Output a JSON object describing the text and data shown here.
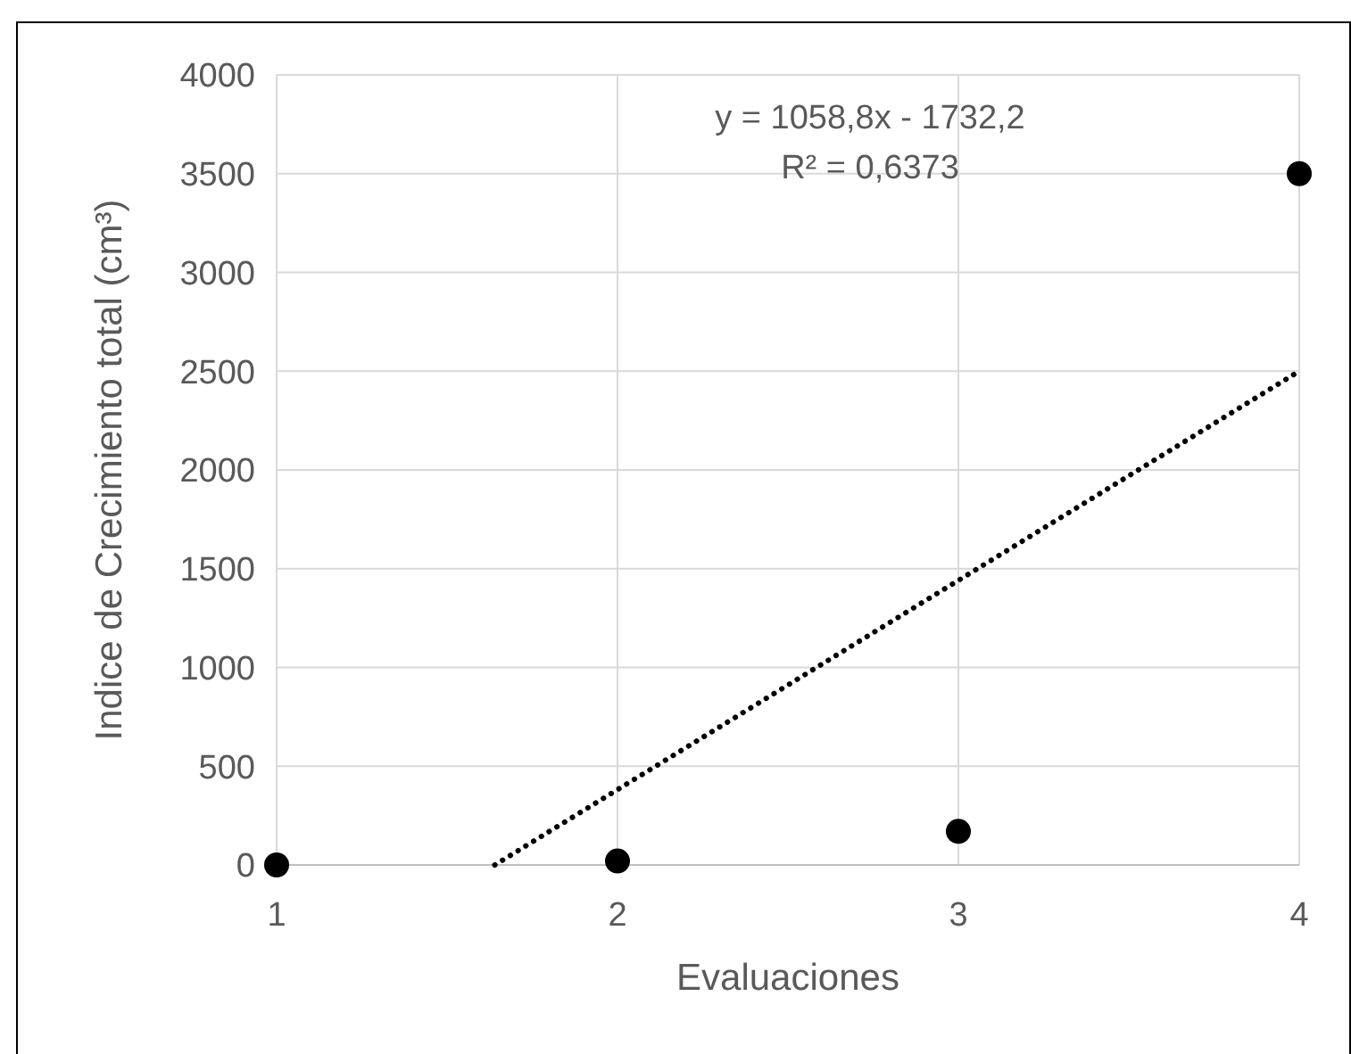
{
  "chart_data": {
    "type": "scatter",
    "xlabel": "Evaluaciones",
    "ylabel": "Indice de Crecimiento total (cm³)",
    "x": [
      1,
      2,
      3,
      4
    ],
    "series": [
      {
        "color": "#000000",
        "marker": "circle",
        "values": [
          0,
          20,
          170,
          3500
        ]
      },
      {
        "type": "line",
        "color": "#000000",
        "line_style": "dotted",
        "marker": "none",
        "x": [
          1.64,
          4
        ],
        "values": [
          0,
          2500
        ]
      }
    ],
    "xlim": [
      1,
      4
    ],
    "xticks": [
      1,
      2,
      3,
      4
    ],
    "ylim": [
      0,
      4000
    ],
    "yticks": [
      0,
      500,
      1000,
      1500,
      2000,
      2500,
      3000,
      3500,
      4000
    ],
    "grid": true,
    "annotations": [
      "y = 1058,8x - 1732,2",
      "R² = 0,6373"
    ]
  }
}
